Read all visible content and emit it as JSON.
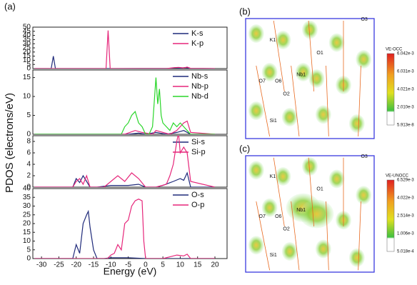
{
  "chart_data": [
    {
      "type": "line",
      "ylim": [
        0,
        50
      ],
      "yticks": [
        0,
        5,
        10,
        15,
        20,
        25,
        30,
        35,
        40,
        45,
        50
      ],
      "xlim": [
        -32.5,
        23.5
      ],
      "series": [
        {
          "name": "K-s",
          "color": "#1f2a7a",
          "x": [
            -32,
            -27.2,
            -26.6,
            -26,
            -10,
            7,
            8.5,
            10,
            11.5,
            13,
            20
          ],
          "values": [
            0,
            0,
            15,
            0,
            0,
            0.3,
            1,
            0.5,
            1.2,
            0.3,
            0
          ]
        },
        {
          "name": "K-p",
          "color": "#e6267a",
          "x": [
            -32,
            -11.4,
            -10.8,
            -10.2,
            6,
            8,
            9.5,
            11,
            12,
            13,
            20
          ],
          "values": [
            0,
            0,
            46,
            0,
            0,
            1,
            1.5,
            0.8,
            1.8,
            0.3,
            0
          ]
        }
      ]
    },
    {
      "type": "line",
      "ylim": [
        0,
        17
      ],
      "yticks": [
        0,
        5,
        10,
        15
      ],
      "xlim": [
        -32.5,
        23.5
      ],
      "series": [
        {
          "name": "Nb-s",
          "color": "#1f2a7a",
          "x": [
            -32,
            -5,
            -2,
            0,
            3,
            6,
            9,
            11,
            13,
            20
          ],
          "values": [
            0,
            0,
            0.3,
            0,
            0.5,
            0,
            0.5,
            1,
            0,
            0
          ]
        },
        {
          "name": "Nb-p",
          "color": "#e6267a",
          "x": [
            -32,
            -6,
            -3,
            -1,
            2,
            3,
            7,
            9,
            10,
            11,
            12,
            13,
            20
          ],
          "values": [
            0,
            0,
            1,
            0.5,
            0,
            1,
            0,
            1,
            2,
            3,
            3.5,
            0.5,
            0
          ]
        },
        {
          "name": "Nb-d",
          "color": "#2ad62a",
          "x": [
            -32,
            -7,
            -6,
            -5,
            -4,
            -3,
            -2,
            -1,
            0,
            1,
            2,
            3,
            3.5,
            4,
            4.5,
            5,
            6,
            7,
            8,
            9,
            10,
            11,
            12,
            13,
            20
          ],
          "values": [
            0,
            0,
            2,
            3,
            5,
            6,
            3,
            2,
            0,
            0,
            2,
            15,
            8,
            12,
            5,
            3,
            2,
            1,
            3,
            2,
            3,
            2,
            1,
            0,
            0
          ]
        }
      ]
    },
    {
      "type": "line",
      "ylim": [
        0,
        9
      ],
      "yticks": [
        0,
        2,
        4,
        6,
        8
      ],
      "xlim": [
        -32.5,
        23.5
      ],
      "series": [
        {
          "name": "Si-s",
          "color": "#1f2a7a",
          "x": [
            -32,
            -21,
            -20,
            -19,
            -18,
            -17,
            -16,
            -14,
            -10,
            -5,
            -2,
            0,
            3,
            5,
            8,
            10,
            11,
            12,
            13,
            20
          ],
          "values": [
            0,
            0,
            1.5,
            0.8,
            2,
            1,
            0,
            0,
            0.3,
            0.3,
            0.5,
            0,
            0,
            0.3,
            1,
            1.5,
            1.2,
            2.5,
            0,
            0
          ]
        },
        {
          "name": "Si-p",
          "color": "#e6267a",
          "x": [
            -32,
            -21,
            -20,
            -19,
            -18,
            -17,
            -16,
            -12,
            -10,
            -8,
            -6,
            -4,
            -2,
            0,
            3,
            6,
            7,
            8,
            9,
            9.5,
            10,
            11,
            12,
            13,
            20
          ],
          "values": [
            0,
            0,
            1,
            1.5,
            0.5,
            2,
            0,
            0,
            1,
            2,
            1,
            2.5,
            1.5,
            0,
            0,
            0.5,
            2,
            4,
            8,
            9.5,
            6,
            7,
            6,
            1,
            0
          ]
        }
      ]
    },
    {
      "type": "line",
      "ylim": [
        0,
        40
      ],
      "yticks": [
        0,
        5,
        10,
        15,
        20,
        25,
        30,
        35,
        40
      ],
      "xlim": [
        -32.5,
        23.5
      ],
      "xticks": [
        -30,
        -25,
        -20,
        -15,
        -10,
        -5,
        0,
        5,
        10,
        15,
        20
      ],
      "x_label": "Energy (eV)",
      "series": [
        {
          "name": "O-s",
          "color": "#1f2a7a",
          "x": [
            -32,
            -21,
            -20,
            -19,
            -18,
            -17,
            -16.5,
            -16,
            -15,
            -14,
            -12,
            -10,
            -5,
            0,
            20
          ],
          "values": [
            0,
            0,
            8,
            3,
            20,
            25,
            27,
            18,
            5,
            0,
            0,
            0.5,
            0.5,
            0,
            0
          ]
        },
        {
          "name": "O-p",
          "color": "#e6267a",
          "x": [
            -32,
            -11,
            -10,
            -9,
            -8,
            -7,
            -6,
            -5,
            -4,
            -3,
            -2,
            -1,
            -0.5,
            0,
            5,
            7,
            9,
            11,
            12,
            13,
            20
          ],
          "values": [
            0,
            0,
            2,
            3,
            8,
            5,
            20,
            22,
            30,
            33,
            34,
            33,
            10,
            0,
            0,
            1,
            2,
            1.5,
            2.5,
            0,
            0
          ]
        }
      ]
    }
  ],
  "y_label": "PDOS (electrons/eV)",
  "panel_label": "(a)",
  "structure_panels": [
    {
      "label": "(b)",
      "colorbar_title": "VE-OCC",
      "colorbar_ticks": [
        "6.042e-3",
        "6.031e-3",
        "4.021e-3",
        "2.010e-3",
        "5.913e-8"
      ],
      "atoms": [
        "O7",
        "O6",
        "K1",
        "Si1",
        "Nb1",
        "O1",
        "O2",
        "O3"
      ]
    },
    {
      "label": "(c)",
      "colorbar_title": "VE-UNOCC",
      "colorbar_ticks": [
        "6.529e-3",
        "4.022e-3",
        "2.514e-3",
        "1.006e-3",
        "5.018e-4"
      ],
      "atoms": [
        "O7",
        "O6",
        "K1",
        "Si1",
        "Nb1",
        "O1",
        "O2",
        "O3"
      ]
    }
  ]
}
